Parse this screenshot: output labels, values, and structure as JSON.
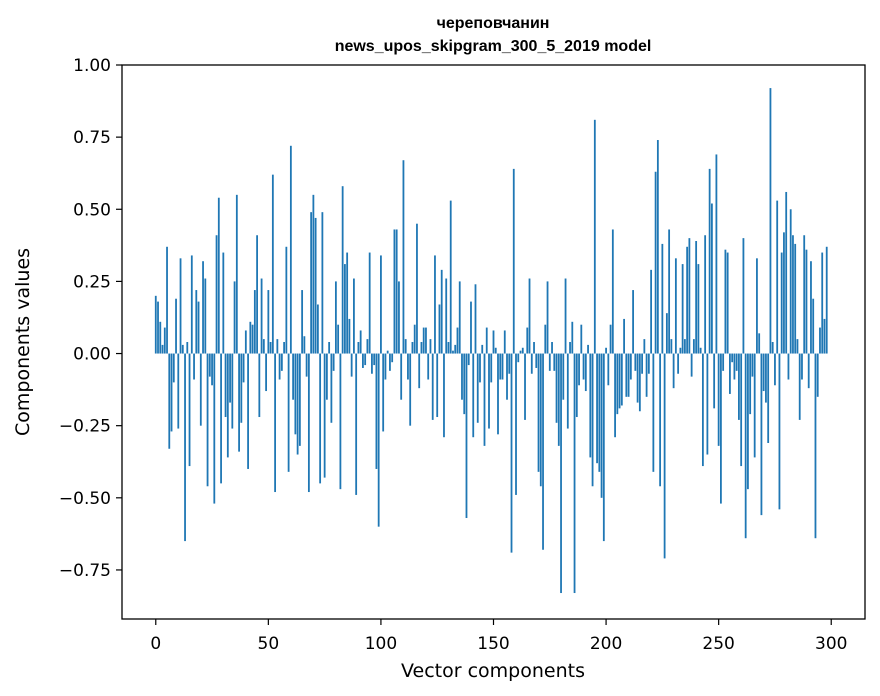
{
  "chart_data": {
    "type": "bar",
    "title": [
      "череповчанин",
      "news_upos_skipgram_300_5_2019 model"
    ],
    "xlabel": "Vector components",
    "ylabel": "Components values",
    "xlim": [
      -15,
      315
    ],
    "ylim": [
      -0.92,
      1.0
    ],
    "xticks": [
      0,
      50,
      100,
      150,
      200,
      250,
      300
    ],
    "xtick_labels": [
      "0",
      "50",
      "100",
      "150",
      "200",
      "250",
      "300"
    ],
    "yticks": [
      1.0,
      0.75,
      0.5,
      0.25,
      0.0,
      -0.25,
      -0.5,
      -0.75
    ],
    "ytick_labels": [
      "1.00",
      "0.75",
      "0.50",
      "0.25",
      "0.00",
      "−0.25",
      "−0.50",
      "−0.75"
    ],
    "bar_color": "#1f77b4",
    "grid": false,
    "values": [
      0.2,
      0.18,
      0.11,
      0.03,
      0.09,
      0.37,
      -0.33,
      -0.27,
      -0.1,
      0.19,
      -0.26,
      0.33,
      0.03,
      -0.65,
      0.04,
      -0.39,
      0.34,
      -0.09,
      0.22,
      0.18,
      -0.25,
      0.32,
      0.26,
      -0.46,
      -0.08,
      -0.11,
      -0.52,
      0.41,
      0.54,
      -0.45,
      0.35,
      -0.22,
      -0.36,
      -0.17,
      -0.26,
      0.25,
      0.55,
      -0.34,
      -0.24,
      -0.1,
      0.08,
      -0.4,
      0.11,
      0.1,
      0.22,
      0.41,
      -0.22,
      0.26,
      0.05,
      -0.13,
      0.22,
      0.04,
      0.62,
      -0.48,
      0.05,
      -0.09,
      -0.06,
      0.04,
      0.37,
      -0.41,
      0.72,
      -0.16,
      -0.28,
      -0.35,
      -0.32,
      0.22,
      0.06,
      -0.08,
      -0.48,
      0.49,
      0.55,
      0.47,
      0.17,
      -0.45,
      0.49,
      -0.43,
      -0.16,
      0.04,
      -0.24,
      -0.06,
      0.25,
      0.1,
      -0.47,
      0.58,
      0.31,
      0.35,
      0.12,
      -0.08,
      0.26,
      -0.49,
      0.04,
      0.08,
      -0.05,
      -0.04,
      0.05,
      0.35,
      -0.07,
      -0.04,
      -0.4,
      -0.6,
      0.34,
      -0.27,
      -0.09,
      0.01,
      -0.06,
      -0.03,
      0.43,
      0.43,
      0.25,
      -0.16,
      0.67,
      0.05,
      -0.09,
      -0.25,
      0.04,
      0.1,
      0.45,
      -0.12,
      0.04,
      0.09,
      0.09,
      -0.09,
      0.05,
      -0.23,
      0.34,
      -0.22,
      0.17,
      0.29,
      -0.29,
      0.26,
      0.04,
      0.53,
      0.01,
      0.03,
      0.09,
      0.25,
      -0.16,
      -0.21,
      -0.57,
      -0.04,
      0.18,
      -0.29,
      0.24,
      -0.24,
      -0.1,
      0.03,
      -0.32,
      0.09,
      -0.26,
      -0.1,
      0.08,
      0.02,
      -0.28,
      -0.09,
      -0.09,
      0.08,
      -0.16,
      -0.07,
      -0.69,
      0.64,
      -0.49,
      -0.03,
      0.01,
      0.02,
      -0.23,
      0.09,
      0.26,
      -0.07,
      0.04,
      -0.05,
      -0.41,
      -0.46,
      -0.68,
      0.1,
      0.25,
      -0.06,
      0.04,
      -0.06,
      -0.24,
      -0.32,
      -0.83,
      -0.16,
      0.26,
      -0.26,
      0.04,
      0.11,
      -0.83,
      -0.22,
      -0.11,
      0.1,
      -0.09,
      -0.13,
      0.03,
      -0.36,
      -0.46,
      0.81,
      -0.38,
      -0.41,
      -0.5,
      -0.65,
      0.02,
      -0.11,
      0.1,
      0.43,
      -0.29,
      -0.21,
      -0.19,
      -0.18,
      0.12,
      -0.15,
      -0.15,
      -0.09,
      0.22,
      -0.06,
      -0.17,
      -0.2,
      -0.07,
      0.05,
      -0.15,
      -0.07,
      0.29,
      -0.41,
      0.63,
      0.74,
      -0.46,
      0.38,
      -0.71,
      0.14,
      0.43,
      0.05,
      -0.12,
      0.33,
      -0.07,
      0.02,
      0.31,
      0.05,
      0.37,
      0.4,
      -0.08,
      0.05,
      0.39,
      0.31,
      0.02,
      -0.39,
      0.41,
      -0.35,
      0.64,
      0.52,
      -0.19,
      0.69,
      -0.32,
      -0.52,
      -0.06,
      0.36,
      0.35,
      -0.14,
      -0.03,
      -0.09,
      -0.06,
      -0.23,
      -0.39,
      0.4,
      -0.64,
      -0.47,
      -0.21,
      -0.08,
      -0.36,
      0.33,
      0.07,
      -0.56,
      -0.13,
      -0.17,
      -0.31,
      0.92,
      0.04,
      -0.11,
      0.53,
      -0.54,
      0.35,
      0.42,
      0.56,
      -0.09,
      0.5,
      0.41,
      0.38,
      0.05,
      -0.23,
      -0.09,
      0.41,
      0.36,
      -0.12,
      0.32,
      0.19,
      -0.64,
      -0.15,
      0.09,
      0.35,
      0.12,
      0.37
    ]
  }
}
